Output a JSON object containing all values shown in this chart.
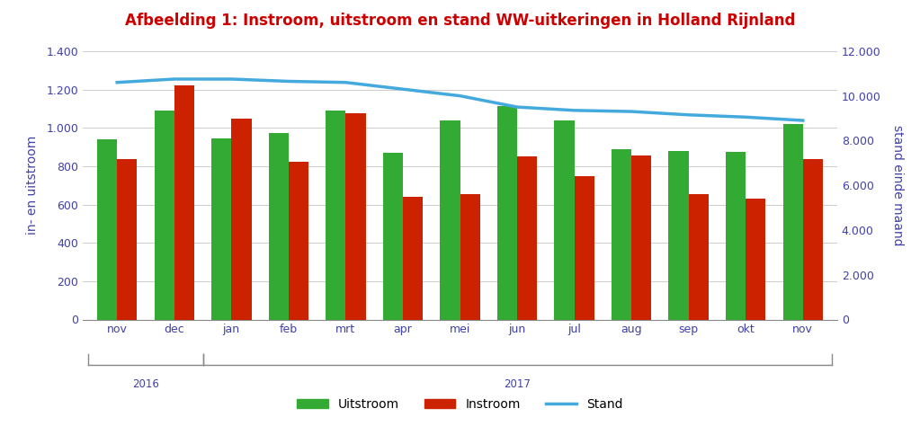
{
  "title": "Afbeelding 1: Instroom, uitstroom en stand WW-uitkeringen in Holland Rijnland",
  "title_color": "#CC0000",
  "categories": [
    "nov",
    "dec",
    "jan",
    "feb",
    "mrt",
    "apr",
    "mei",
    "jun",
    "jul",
    "aug",
    "sep",
    "okt",
    "nov"
  ],
  "uitstroom": [
    940,
    1090,
    945,
    975,
    1090,
    870,
    1040,
    1115,
    1040,
    890,
    880,
    875,
    1020
  ],
  "instroom": [
    835,
    1220,
    1050,
    825,
    1075,
    640,
    655,
    850,
    750,
    855,
    655,
    630,
    835
  ],
  "stand": [
    10600,
    10750,
    10750,
    10650,
    10600,
    10300,
    10000,
    9500,
    9350,
    9300,
    9150,
    9050,
    8900
  ],
  "uitstroom_color": "#33AA33",
  "instroom_color": "#CC2200",
  "stand_color": "#44AADD",
  "left_ylabel": "in- en uitstroom",
  "right_ylabel": "stand einde maand",
  "left_ylim": [
    0,
    1400
  ],
  "right_ylim": [
    0,
    12000
  ],
  "left_yticks": [
    0,
    200,
    400,
    600,
    800,
    1000,
    1200,
    1400
  ],
  "right_yticks": [
    0,
    2000,
    4000,
    6000,
    8000,
    10000,
    12000
  ],
  "left_ytick_labels": [
    "0",
    "200",
    "400",
    "600",
    "800",
    "1.000",
    "1.200",
    "1.400"
  ],
  "right_ytick_labels": [
    "0",
    "2.000",
    "4.000",
    "6.000",
    "8.000",
    "10.000",
    "12.000"
  ],
  "legend_labels": [
    "Uitstroom",
    "Instroom",
    "Stand"
  ],
  "bg_color": "#FFFFFF",
  "axis_label_color": "#4040AA",
  "tick_label_color": "#4040AA",
  "grid_color": "#CCCCCC",
  "bar_width": 0.35
}
